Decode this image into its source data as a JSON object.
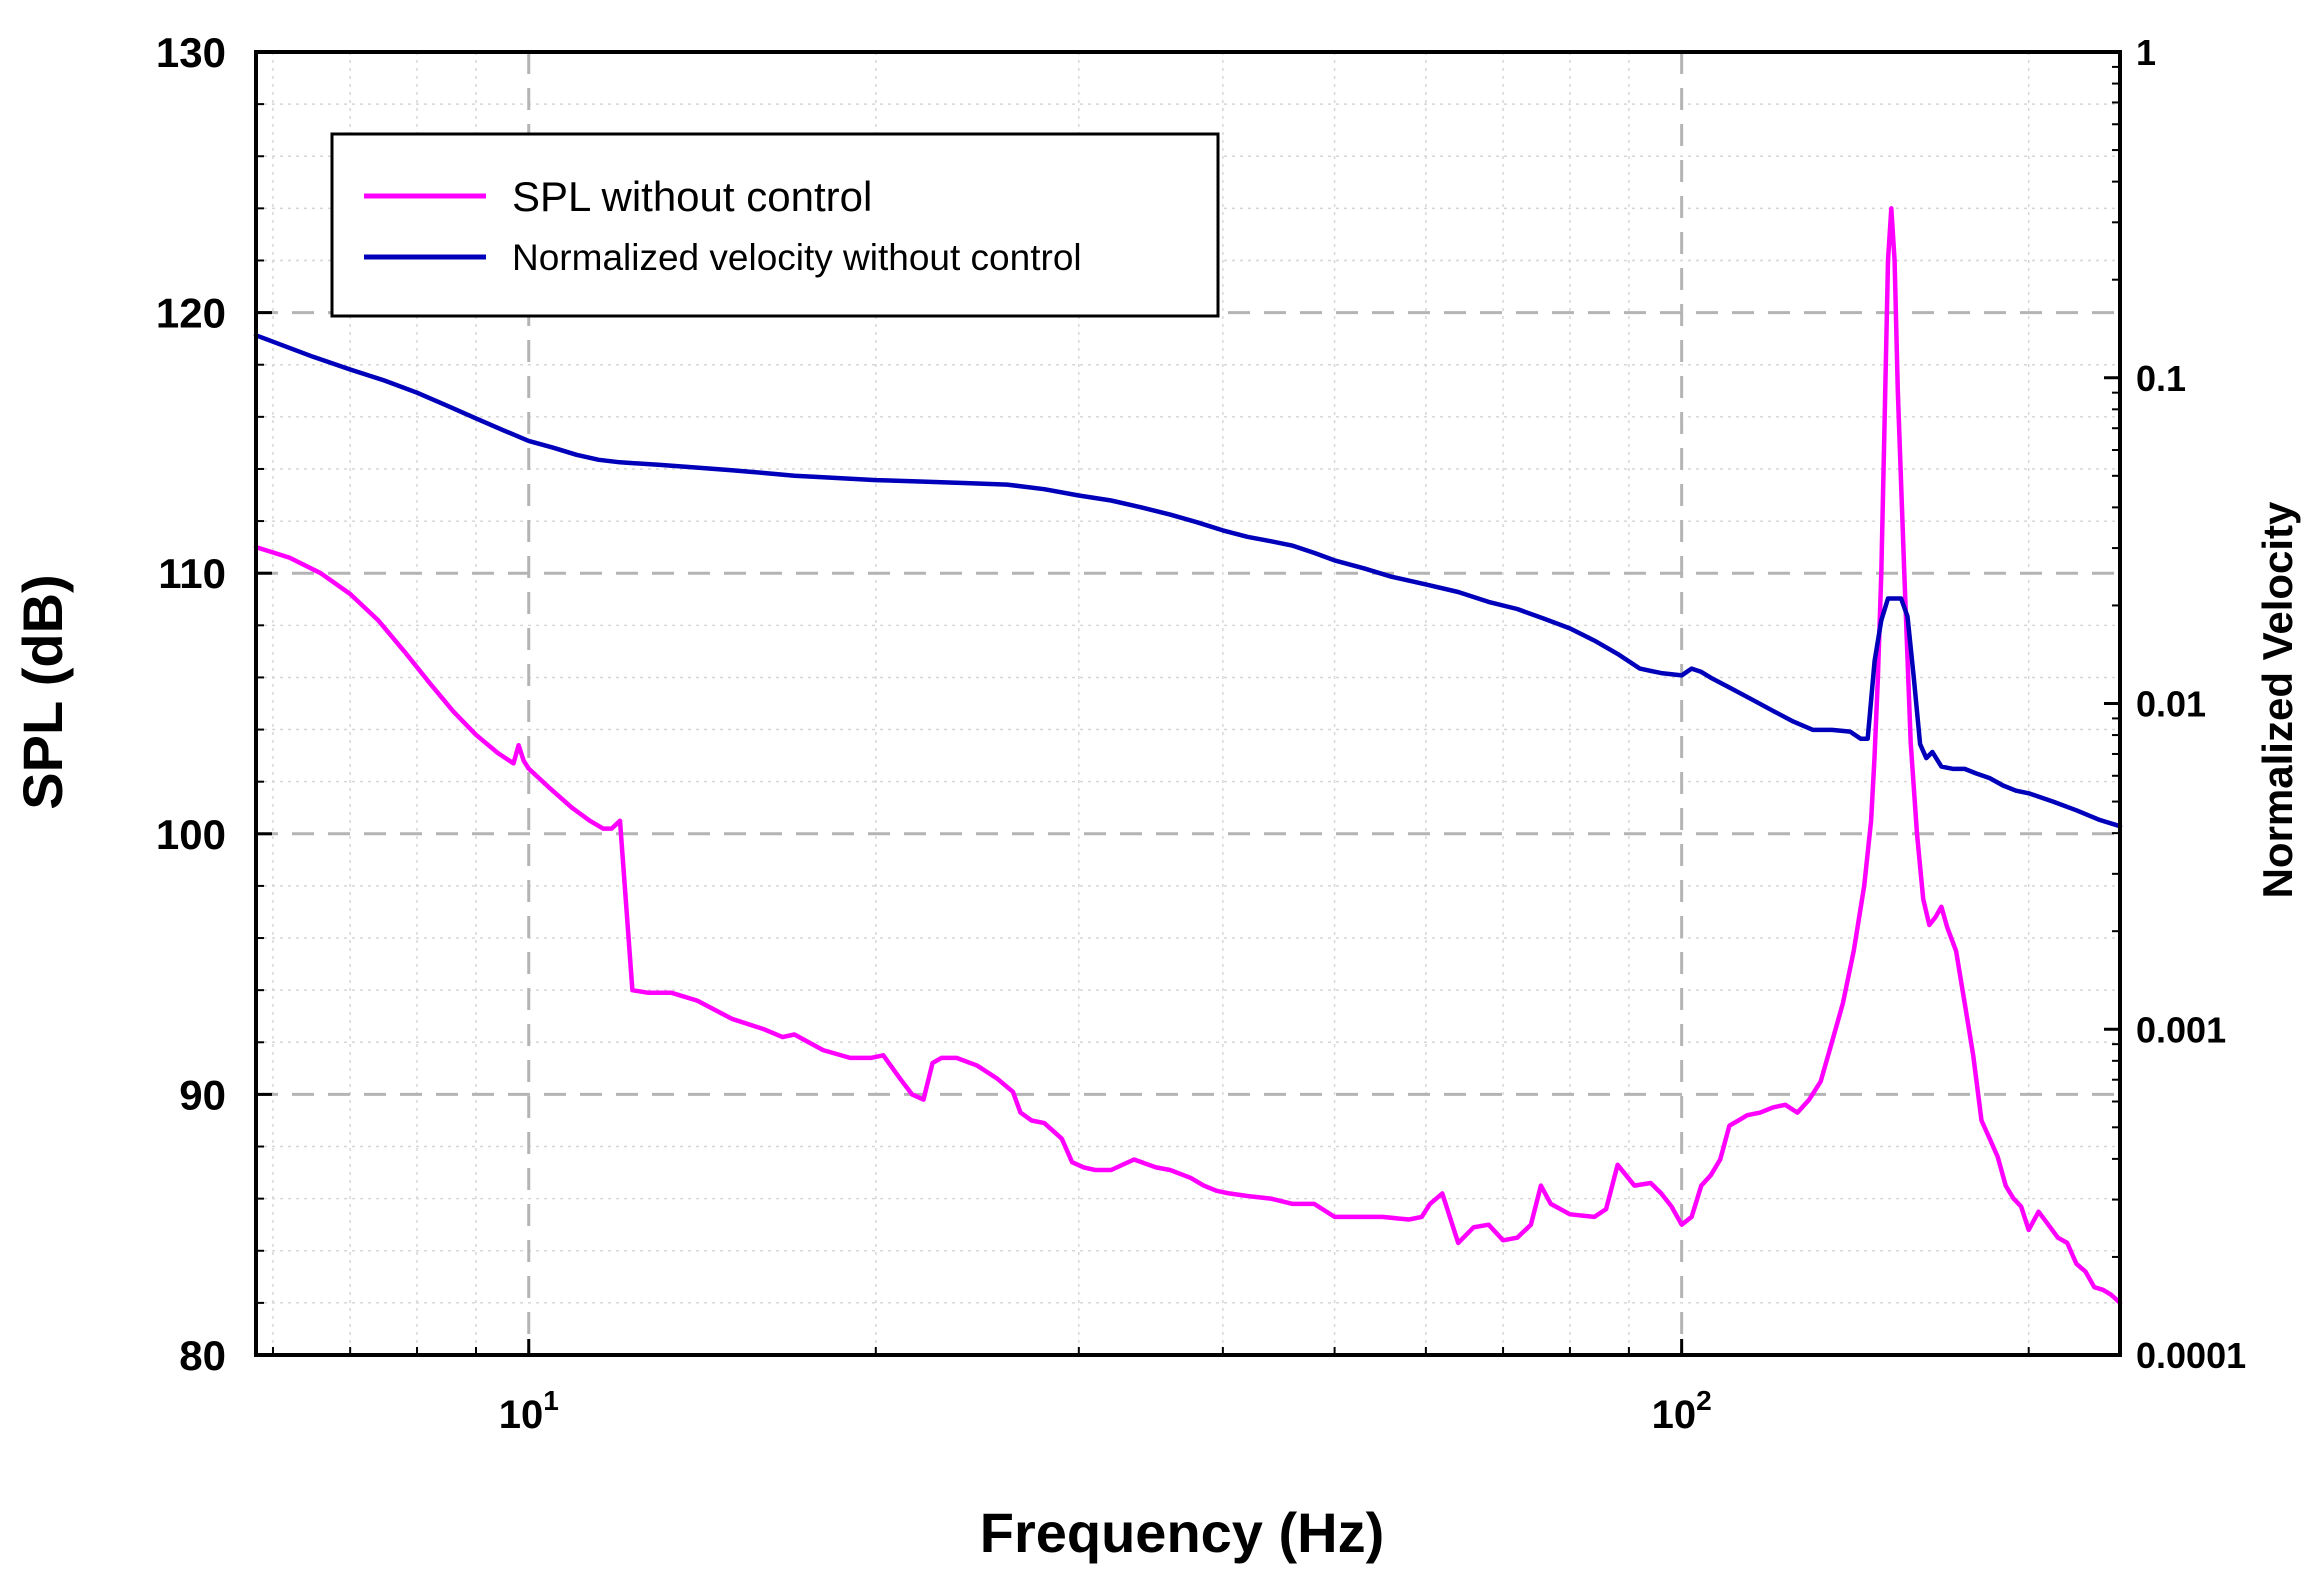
{
  "chart_data": {
    "type": "line",
    "xscale": "log",
    "xlim": [
      5.8,
      240
    ],
    "xlabel": "Frequency (Hz)",
    "x_ticks": [
      {
        "value": 10,
        "base": "10",
        "exp": "1"
      },
      {
        "value": 100,
        "base": "10",
        "exp": "2"
      }
    ],
    "left_axis": {
      "label": "SPL (dB)",
      "ylim": [
        80,
        130
      ],
      "ticks": [
        {
          "value": 80,
          "label": "80"
        },
        {
          "value": 90,
          "label": "90"
        },
        {
          "value": 100,
          "label": "100"
        },
        {
          "value": 110,
          "label": "110"
        },
        {
          "value": 120,
          "label": "120"
        },
        {
          "value": 130,
          "label": "130"
        }
      ]
    },
    "right_axis": {
      "label": "Normalized Velocity",
      "scale": "log",
      "ylim": [
        0.0001,
        1
      ],
      "ticks": [
        {
          "value": 0.0001,
          "label": "0.0001"
        },
        {
          "value": 0.001,
          "label": "0.001"
        },
        {
          "value": 0.01,
          "label": "0.01"
        },
        {
          "value": 0.1,
          "label": "0.1"
        },
        {
          "value": 1,
          "label": "1"
        }
      ]
    },
    "grid": true,
    "legend_position": "top-left",
    "series": [
      {
        "name": "SPL without control",
        "axis": "left",
        "color": "#ff00ff",
        "x": [
          5.8,
          6.2,
          6.6,
          7.0,
          7.4,
          7.8,
          8.2,
          8.6,
          9.0,
          9.4,
          9.7,
          9.8,
          9.9,
          10.0,
          10.4,
          10.9,
          11.3,
          11.6,
          11.8,
          12.0,
          12.3,
          12.7,
          13.3,
          14.0,
          15.0,
          16.0,
          16.6,
          17.0,
          18.0,
          19.0,
          19.8,
          20.3,
          21.0,
          21.5,
          22.0,
          22.4,
          22.8,
          23.5,
          24.5,
          25.5,
          26.3,
          26.7,
          27.3,
          28.0,
          29.0,
          29.6,
          30.3,
          31.0,
          32.0,
          33.5,
          35.0,
          36.0,
          37.5,
          38.5,
          39.5,
          40.5,
          42.0,
          44.0,
          46.0,
          48.0,
          50.0,
          52.0,
          55.0,
          58.0,
          59.5,
          60.5,
          62.0,
          64.0,
          66.0,
          68.0,
          70.0,
          72.0,
          74.0,
          75.5,
          77.0,
          80.0,
          84.0,
          86.0,
          88.0,
          91.0,
          94.0,
          96.0,
          98.0,
          100.0,
          102.0,
          104.0,
          106.0,
          108.0,
          110.0,
          112.0,
          114.0,
          117.0,
          120.0,
          123.0,
          126.0,
          129.0,
          132.0,
          135.0,
          138.0,
          141.0,
          144.0,
          146.0,
          147.0,
          148.0,
          149.0,
          150.0,
          151.0,
          152.0,
          153.0,
          154.0,
          156.0,
          158.0,
          160.0,
          162.0,
          164.0,
          166.0,
          168.0,
          170.0,
          173.0,
          176.0,
          179.0,
          182.0,
          185.0,
          188.0,
          191.0,
          194.0,
          197.0,
          200.0,
          204.0,
          208.0,
          212.0,
          216.0,
          220.0,
          224.0,
          228.0,
          232.0,
          236.0,
          240.0
        ],
        "y": [
          111.0,
          110.6,
          110.0,
          109.2,
          108.2,
          107.0,
          105.8,
          104.7,
          103.8,
          103.1,
          102.7,
          103.4,
          102.8,
          102.5,
          101.8,
          101.0,
          100.5,
          100.2,
          100.2,
          100.5,
          94.0,
          93.9,
          93.9,
          93.6,
          92.9,
          92.5,
          92.2,
          92.3,
          91.7,
          91.4,
          91.4,
          91.5,
          90.6,
          90.0,
          89.8,
          91.2,
          91.4,
          91.4,
          91.1,
          90.6,
          90.1,
          89.3,
          89.0,
          88.9,
          88.3,
          87.4,
          87.2,
          87.1,
          87.1,
          87.5,
          87.2,
          87.1,
          86.8,
          86.5,
          86.3,
          86.2,
          86.1,
          86.0,
          85.8,
          85.8,
          85.3,
          85.3,
          85.3,
          85.2,
          85.3,
          85.8,
          86.2,
          84.3,
          84.9,
          85.0,
          84.4,
          84.5,
          85.0,
          86.5,
          85.8,
          85.4,
          85.3,
          85.6,
          87.3,
          86.5,
          86.6,
          86.2,
          85.7,
          85.0,
          85.3,
          86.5,
          86.9,
          87.5,
          88.8,
          89.0,
          89.2,
          89.3,
          89.5,
          89.6,
          89.3,
          89.8,
          90.5,
          92.0,
          93.5,
          95.5,
          98.0,
          100.5,
          103.0,
          106.0,
          110.0,
          116.0,
          122.0,
          124.0,
          122.0,
          117.0,
          110.0,
          103.5,
          100.0,
          97.5,
          96.5,
          96.8,
          97.2,
          96.4,
          95.5,
          93.5,
          91.5,
          89.0,
          88.3,
          87.6,
          86.5,
          86.0,
          85.7,
          84.8,
          85.5,
          85.0,
          84.5,
          84.3,
          83.5,
          83.2,
          82.6,
          82.5,
          82.3,
          82.0
        ],
        "peak": {
          "x": 151,
          "y": 124
        }
      },
      {
        "name": "Normalized velocity without control",
        "axis": "right",
        "color": "#0000bb",
        "x": [
          5.8,
          6.5,
          7.0,
          7.5,
          8.0,
          8.5,
          9.0,
          9.5,
          10.0,
          10.5,
          11.0,
          11.5,
          12.0,
          13.0,
          14.0,
          15.0,
          16.0,
          17.0,
          18.0,
          20.0,
          22.0,
          24.0,
          26.0,
          28.0,
          30.0,
          32.0,
          34.0,
          36.0,
          38.0,
          40.0,
          42.0,
          44.0,
          46.0,
          48.0,
          50.0,
          53.0,
          56.0,
          60.0,
          64.0,
          68.0,
          72.0,
          76.0,
          80.0,
          84.0,
          88.0,
          92.0,
          96.0,
          100.0,
          102.0,
          104.0,
          106.0,
          110.0,
          115.0,
          120.0,
          125.0,
          130.0,
          135.0,
          140.0,
          143.0,
          145.0,
          147.0,
          149.0,
          151.0,
          153.0,
          155.0,
          157.0,
          159.0,
          161.0,
          163.0,
          165.0,
          168.0,
          172.0,
          176.0,
          180.0,
          185.0,
          190.0,
          195.0,
          200.0,
          210.0,
          220.0,
          230.0,
          240.0
        ],
        "y": [
          0.135,
          0.116,
          0.106,
          0.098,
          0.09,
          0.082,
          0.075,
          0.069,
          0.064,
          0.061,
          0.058,
          0.056,
          0.055,
          0.054,
          0.053,
          0.052,
          0.051,
          0.05,
          0.0495,
          0.0485,
          0.048,
          0.0475,
          0.047,
          0.0455,
          0.0435,
          0.042,
          0.04,
          0.038,
          0.036,
          0.034,
          0.0325,
          0.0315,
          0.0305,
          0.029,
          0.0275,
          0.026,
          0.0245,
          0.0232,
          0.022,
          0.0205,
          0.0195,
          0.0182,
          0.017,
          0.0156,
          0.0142,
          0.0128,
          0.0124,
          0.0122,
          0.0128,
          0.0125,
          0.012,
          0.0112,
          0.0103,
          0.0095,
          0.0088,
          0.0083,
          0.0083,
          0.0082,
          0.0078,
          0.0078,
          0.0135,
          0.018,
          0.021,
          0.021,
          0.021,
          0.0185,
          0.012,
          0.0075,
          0.0068,
          0.0071,
          0.0064,
          0.0063,
          0.0063,
          0.0061,
          0.0059,
          0.0056,
          0.0054,
          0.0053,
          0.005,
          0.0047,
          0.0044,
          0.0042
        ]
      }
    ]
  }
}
